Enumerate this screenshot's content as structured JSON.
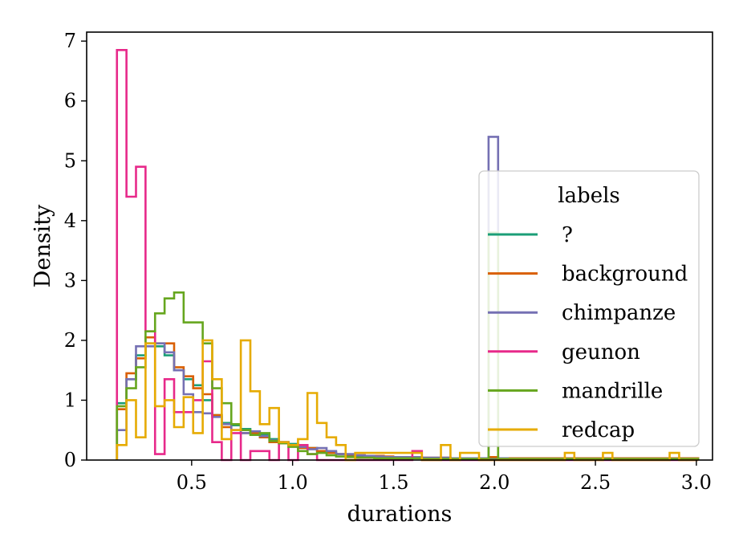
{
  "chart_data": {
    "type": "histogram",
    "xlabel": "durations",
    "ylabel": "Density",
    "xlim": [
      -0.02,
      3.08
    ],
    "ylim": [
      0,
      7.15
    ],
    "xticks": [
      0.5,
      1.0,
      1.5,
      2.0,
      2.5,
      3.0
    ],
    "xtick_labels": [
      "0.5",
      "1.0",
      "1.5",
      "2.0",
      "2.5",
      "3.0"
    ],
    "yticks": [
      0,
      1,
      2,
      3,
      4,
      5,
      6,
      7
    ],
    "ytick_labels": [
      "0",
      "1",
      "2",
      "3",
      "4",
      "5",
      "6",
      "7"
    ],
    "bin_start": 0.13,
    "bin_width": 0.0472,
    "legend": {
      "title": "labels",
      "position": "center-right",
      "entries": [
        "?",
        "background",
        "chimpanze",
        "geunon",
        "mandrille",
        "redcap"
      ]
    },
    "series": [
      {
        "name": "?",
        "color": "#1b9e77",
        "values": [
          0.95,
          1.35,
          1.75,
          1.95,
          1.9,
          1.75,
          1.5,
          1.35,
          1.25,
          1.0,
          0.75,
          0.62,
          0.58,
          0.52,
          0.45,
          0.42,
          0.35,
          0.3,
          0.27,
          0.22,
          0.2,
          0.15,
          0.13,
          0.1,
          0.08,
          0.07,
          0.06,
          0.05,
          0.05,
          0.04,
          0.04,
          0.03,
          0.03,
          0.03,
          0.03,
          0.03,
          0.03,
          0.02,
          0.02,
          0.02,
          0.02,
          0.02,
          0.02,
          0.02,
          0.02,
          0.02,
          0.02,
          0.02,
          0.02,
          0.02,
          0.02,
          0.02,
          0.02,
          0.02,
          0.02,
          0.02,
          0.02,
          0.02,
          0.02,
          0.02,
          0.02
        ]
      },
      {
        "name": "background",
        "color": "#d95f02",
        "values": [
          0.85,
          1.45,
          1.7,
          2.05,
          1.95,
          1.95,
          1.55,
          1.4,
          1.2,
          1.1,
          0.75,
          0.55,
          0.5,
          0.45,
          0.45,
          0.38,
          0.3,
          0.28,
          0.25,
          0.2,
          0.2,
          0.15,
          0.12,
          0.1,
          0.09,
          0.08,
          0.07,
          0.07,
          0.06,
          0.05,
          0.05,
          0.05,
          0.04,
          0.04,
          0.04,
          0.03,
          0.03,
          0.03,
          0.03,
          0.05,
          0.03,
          0.03,
          0.03,
          0.03,
          0.03,
          0.03,
          0.03,
          0.03,
          0.03,
          0.03,
          0.03,
          0.03,
          0.03,
          0.03,
          0.03,
          0.03,
          0.03,
          0.03,
          0.03,
          0.03,
          0.03
        ]
      },
      {
        "name": "chimpanze",
        "color": "#7570b3",
        "values": [
          0.5,
          1.35,
          1.9,
          1.9,
          1.95,
          1.8,
          1.5,
          1.1,
          0.8,
          0.78,
          0.72,
          0.6,
          0.5,
          0.45,
          0.48,
          0.4,
          0.33,
          0.3,
          0.25,
          0.22,
          0.18,
          0.2,
          0.15,
          0.1,
          0.1,
          0.08,
          0.07,
          0.06,
          0.05,
          0.05,
          0.05,
          0.05,
          0.04,
          0.04,
          0.04,
          0.03,
          0.03,
          0.03,
          0.03,
          5.4,
          0.03,
          0.02,
          0.02,
          0.02,
          0.02,
          0.02,
          0.02,
          0.02,
          0.02,
          0.02,
          0.02,
          0.02,
          0.02,
          0.02,
          0.02,
          0.02,
          0.02,
          0.02,
          0.02,
          0.02,
          0.02
        ]
      },
      {
        "name": "geunon",
        "color": "#e7298a",
        "values": [
          6.85,
          4.4,
          4.9,
          2.15,
          0.1,
          1.35,
          0.8,
          0.8,
          1.0,
          1.65,
          0.3,
          0.0,
          0.45,
          0.0,
          0.15,
          0.15,
          0.0,
          0.3,
          0.0,
          0.25,
          0.1,
          0.0,
          0.0,
          0.0,
          0.0,
          0.0,
          0.0,
          0.0,
          0.0,
          0.0,
          0.0,
          0.15,
          0.0,
          0.0,
          0.0,
          0.0,
          0.0,
          0.0,
          0.0,
          0.0,
          0.0,
          0.0,
          0.0,
          0.0,
          0.0,
          0.0,
          0.0,
          0.0,
          0.0,
          0.0,
          0.0,
          0.0,
          0.0,
          0.0,
          0.0,
          0.0,
          0.0,
          0.0,
          0.0,
          0.0,
          0.0
        ]
      },
      {
        "name": "mandrille",
        "color": "#66a61e",
        "values": [
          0.9,
          1.2,
          1.55,
          2.15,
          2.45,
          2.7,
          2.8,
          2.3,
          2.3,
          1.95,
          1.2,
          0.95,
          0.6,
          0.5,
          0.42,
          0.45,
          0.32,
          0.28,
          0.22,
          0.15,
          0.1,
          0.12,
          0.08,
          0.06,
          0.05,
          0.04,
          0.04,
          0.03,
          0.03,
          0.03,
          0.03,
          0.03,
          0.02,
          0.02,
          0.02,
          0.02,
          0.02,
          0.02,
          0.02,
          3.8,
          0.02,
          0.02,
          0.02,
          0.02,
          0.02,
          0.02,
          0.02,
          0.02,
          0.02,
          0.02,
          0.02,
          0.02,
          0.02,
          0.02,
          0.02,
          0.02,
          0.02,
          0.02,
          0.02,
          0.02,
          0.02
        ]
      },
      {
        "name": "redcap",
        "color": "#e6ab02",
        "values": [
          0.25,
          1.0,
          0.38,
          1.95,
          0.9,
          1.0,
          0.55,
          1.05,
          0.45,
          2.0,
          1.35,
          0.35,
          0.5,
          2.0,
          1.15,
          0.6,
          0.87,
          0.3,
          0.25,
          0.35,
          1.12,
          0.62,
          0.38,
          0.25,
          0.0,
          0.12,
          0.12,
          0.12,
          0.12,
          0.12,
          0.12,
          0.12,
          0.0,
          0.0,
          0.25,
          0.0,
          0.12,
          0.12,
          0.0,
          0.0,
          0.0,
          0.0,
          0.0,
          0.0,
          0.0,
          0.0,
          0.0,
          0.12,
          0.0,
          0.0,
          0.0,
          0.12,
          0.0,
          0.0,
          0.0,
          0.0,
          0.0,
          0.0,
          0.12,
          0.0,
          0.0
        ]
      }
    ]
  }
}
